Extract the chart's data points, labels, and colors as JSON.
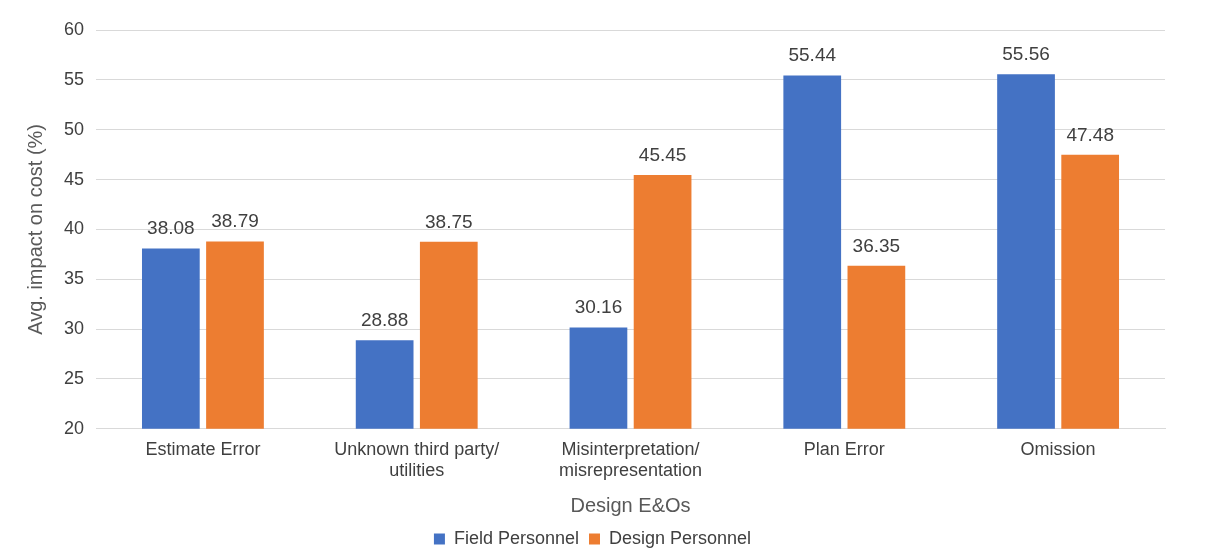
{
  "chart_data": {
    "type": "bar",
    "xlabel": "Design E&Os",
    "ylabel": "Avg. impact on cost (%)",
    "categories": [
      "Estimate Error",
      "Unknown third party/ utilities",
      "Misinterpretation/ misrepresentation",
      "Plan Error",
      "Omission"
    ],
    "series": [
      {
        "name": "Field Personnel",
        "color": "#4472c4",
        "values": [
          38.08,
          28.88,
          30.16,
          55.44,
          55.56
        ]
      },
      {
        "name": "Design Personnel",
        "color": "#ed7d31",
        "values": [
          38.79,
          38.75,
          45.45,
          36.35,
          47.48
        ]
      }
    ],
    "ylim": [
      20,
      60
    ],
    "yticks": [
      20,
      25,
      30,
      35,
      40,
      45,
      50,
      55,
      60
    ],
    "grid": "y",
    "legend": "bottom",
    "data_labels": true
  }
}
